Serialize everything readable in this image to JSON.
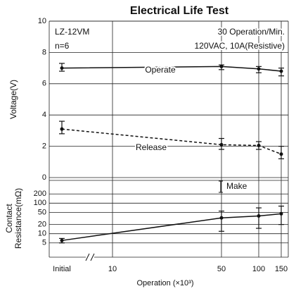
{
  "chart_data": {
    "type": "line",
    "title": "Electrical Life Test",
    "x_label": "Operation (×10³)",
    "x": [
      0,
      50,
      100,
      150
    ],
    "xticks": [
      {
        "value": 0,
        "label": "Initial"
      },
      10,
      50,
      100,
      150
    ],
    "annotations": [
      "LZ-12VM",
      "n=6",
      "30 Operation/Min.",
      "120VAC, 10A(Resistive)"
    ],
    "grid": true,
    "panels": [
      {
        "y_label": [
          "Voltage(V)"
        ],
        "ylim": [
          0,
          10
        ],
        "yticks": [
          0,
          2,
          4,
          6,
          8,
          10
        ],
        "log": false,
        "series": [
          {
            "name": "Operate",
            "color": "#111111",
            "dashed": false,
            "values": [
              7.0,
              7.1,
              6.95,
              6.8
            ],
            "low": [
              6.8,
              6.9,
              6.7,
              6.5
            ],
            "high": [
              7.3,
              7.2,
              7.1,
              7.0
            ]
          },
          {
            "name": "Release",
            "color": "#111111",
            "dashed": true,
            "values": [
              3.1,
              2.1,
              2.05,
              1.5
            ],
            "low": [
              2.8,
              1.8,
              1.8,
              1.2
            ],
            "high": [
              3.6,
              2.5,
              2.3,
              2.0
            ]
          }
        ]
      },
      {
        "y_label": [
          "Contact",
          "Resistance(mΩ)"
        ],
        "ylim": [
          2,
          500
        ],
        "yticks": [
          5,
          10,
          20,
          50,
          100,
          200
        ],
        "log": true,
        "series": [
          {
            "name": "Make",
            "color": "#111111",
            "dashed": false,
            "values": [
              6,
              33,
              38,
              45
            ],
            "low": [
              5,
              12,
              15,
              20
            ],
            "high": [
              7,
              55,
              70,
              80
            ]
          }
        ]
      }
    ]
  }
}
